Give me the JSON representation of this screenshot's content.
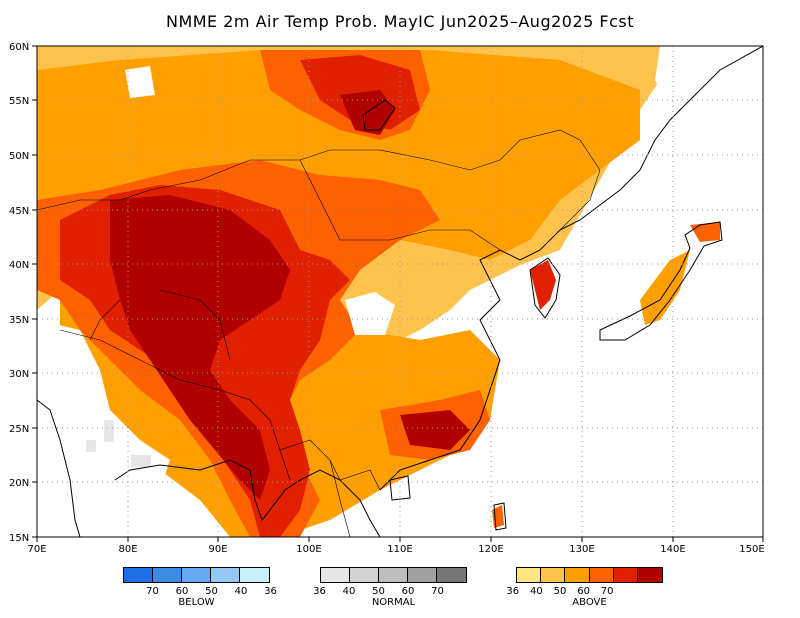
{
  "title": "NMME 2m Air Temp Prob. MayIC  Jun2025–Aug2025 Fcst",
  "map": {
    "lon_labels": [
      "70E",
      "80E",
      "90E",
      "100E",
      "110E",
      "120E",
      "130E",
      "140E",
      "150E"
    ],
    "lat_labels": [
      "60N",
      "55N",
      "50N",
      "45N",
      "40N",
      "35N",
      "30N",
      "25N",
      "20N",
      "15N"
    ],
    "colors": {
      "above": [
        "#ffe680",
        "#ffc34d",
        "#ffa000",
        "#ff6000",
        "#e02000",
        "#b00000"
      ],
      "below": [
        "#1e6ee6",
        "#3c8ce6",
        "#64aaf0",
        "#96c8f5",
        "#c8f0fa"
      ],
      "normal": [
        "#e6e6e6",
        "#d2d2d2",
        "#bebebe",
        "#a0a0a0",
        "#787878"
      ]
    }
  },
  "legend": {
    "below": {
      "label": "BELOW",
      "ticks": [
        "70",
        "60",
        "50",
        "40",
        "36"
      ]
    },
    "normal": {
      "label": "NORMAL",
      "ticks": [
        "36",
        "40",
        "50",
        "60",
        "70"
      ]
    },
    "above": {
      "label": "ABOVE",
      "ticks": [
        "36",
        "40",
        "50",
        "60",
        "70"
      ]
    }
  }
}
